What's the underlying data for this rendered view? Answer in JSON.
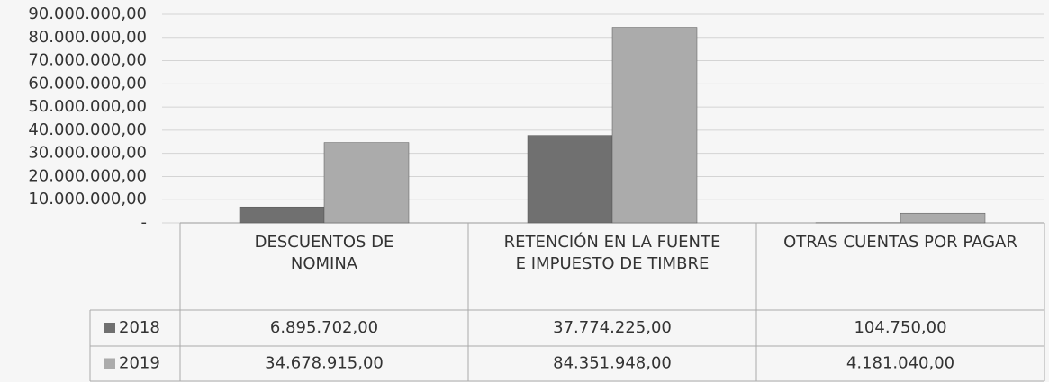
{
  "chart_data": {
    "type": "bar",
    "categories": [
      "DESCUENTOS DE NOMINA",
      "RETENCIÓN EN LA FUENTE E IMPUESTO DE TIMBRE",
      "OTRAS CUENTAS POR PAGAR"
    ],
    "series": [
      {
        "name": "2018",
        "color": "#707070",
        "values": [
          6895702,
          37774225,
          104750
        ],
        "value_labels": [
          "6.895.702,00",
          "37.774.225,00",
          "104.750,00"
        ]
      },
      {
        "name": "2019",
        "color": "#ababab",
        "values": [
          34678915,
          84351948,
          4181040
        ],
        "value_labels": [
          "34.678.915,00",
          "84.351.948,00",
          "4.181.040,00"
        ]
      }
    ],
    "ylim": [
      0,
      90000000
    ],
    "yticks": [
      {
        "value": 0,
        "label": "-"
      },
      {
        "value": 10000000,
        "label": "10.000.000,00"
      },
      {
        "value": 20000000,
        "label": "20.000.000,00"
      },
      {
        "value": 30000000,
        "label": "30.000.000,00"
      },
      {
        "value": 40000000,
        "label": "40.000.000,00"
      },
      {
        "value": 50000000,
        "label": "50.000.000,00"
      },
      {
        "value": 60000000,
        "label": "60.000.000,00"
      },
      {
        "value": 70000000,
        "label": "70.000.000,00"
      },
      {
        "value": 80000000,
        "label": "80.000.000,00"
      },
      {
        "value": 90000000,
        "label": "90.000.000,00"
      }
    ],
    "grid": true
  }
}
